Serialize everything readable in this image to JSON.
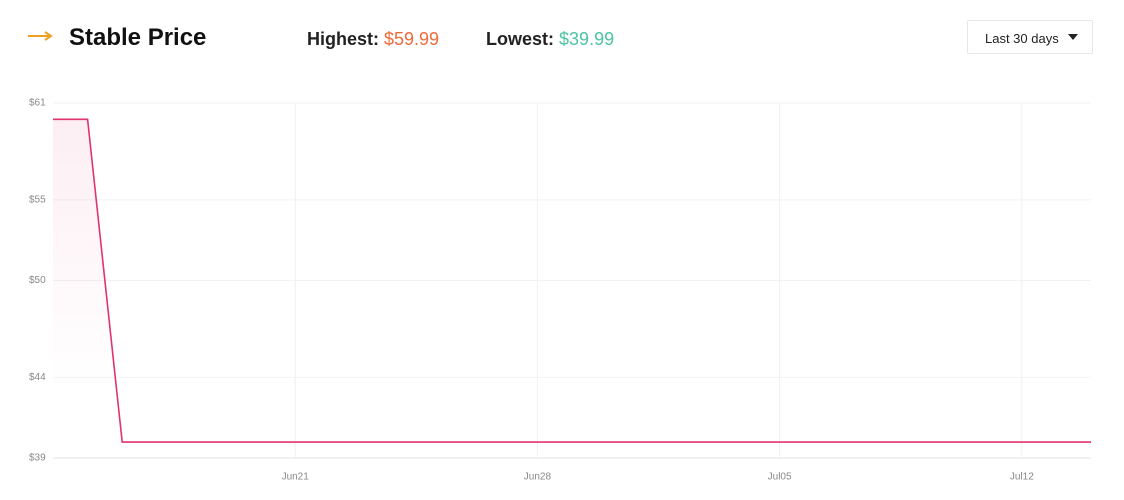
{
  "header": {
    "title": "Stable Price",
    "highest_label": "Highest:",
    "highest_value": "$59.99",
    "lowest_label": "Lowest:",
    "lowest_value": "$39.99",
    "range_select": "Last 30 days"
  },
  "chart_data": {
    "type": "line",
    "x": [
      "Jun14",
      "Jun15",
      "Jun16",
      "Jul14"
    ],
    "series": [
      {
        "name": "Price",
        "color": "#e0336b",
        "values": [
          59.99,
          59.99,
          39.99,
          39.99
        ]
      }
    ],
    "xlim": [
      "Jun14",
      "Jul14"
    ],
    "xticks": [
      "Jun21",
      "Jun28",
      "Jul05",
      "Jul12"
    ],
    "ylim": [
      39,
      61
    ],
    "yticks": [
      {
        "value": 39,
        "label": "$39"
      },
      {
        "value": 44,
        "label": "$44"
      },
      {
        "value": 50,
        "label": "$50"
      },
      {
        "value": 55,
        "label": "$55"
      },
      {
        "value": 61,
        "label": "$61"
      }
    ],
    "grid": true
  }
}
